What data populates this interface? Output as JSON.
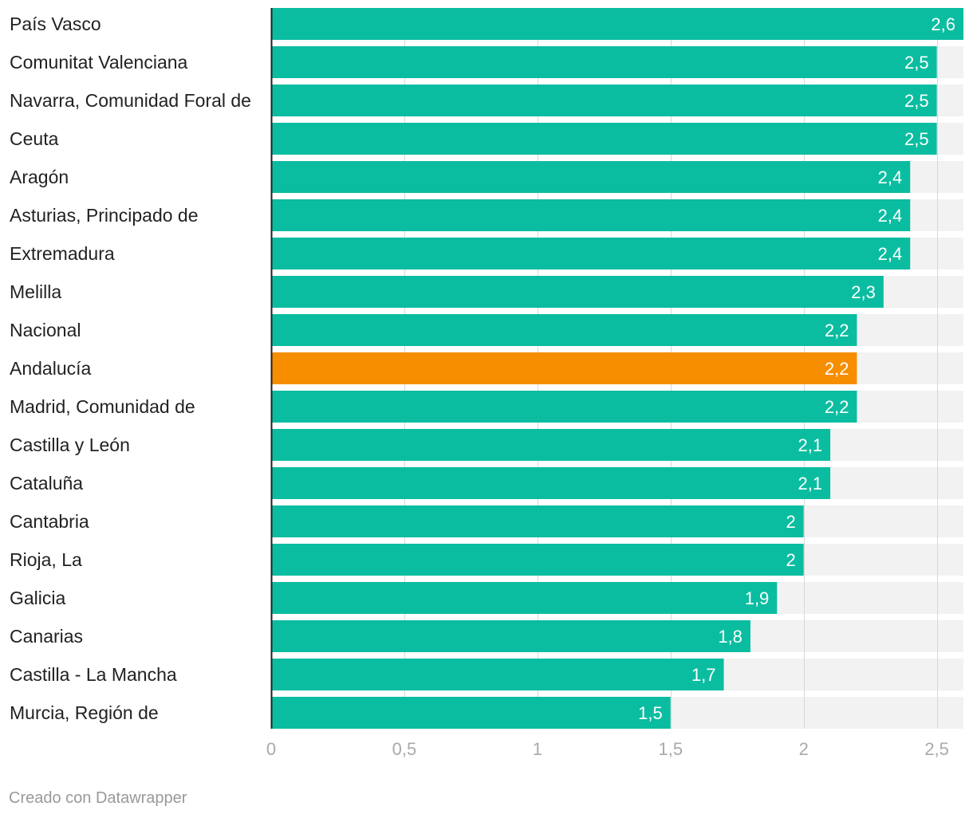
{
  "chart_data": {
    "type": "bar",
    "orientation": "horizontal",
    "categories": [
      "País Vasco",
      "Comunitat Valenciana",
      "Navarra, Comunidad Foral de",
      "Ceuta",
      "Aragón",
      "Asturias, Principado de",
      "Extremadura",
      "Melilla",
      "Nacional",
      "Andalucía",
      "Madrid, Comunidad de",
      "Castilla y León",
      "Cataluña",
      "Cantabria",
      "Rioja, La",
      "Galicia",
      "Canarias",
      "Castilla - La Mancha",
      "Murcia, Región de"
    ],
    "values": [
      2.6,
      2.5,
      2.5,
      2.5,
      2.4,
      2.4,
      2.4,
      2.3,
      2.2,
      2.2,
      2.2,
      2.1,
      2.1,
      2,
      2,
      1.9,
      1.8,
      1.7,
      1.5
    ],
    "value_labels": [
      "2,6",
      "2,5",
      "2,5",
      "2,5",
      "2,4",
      "2,4",
      "2,4",
      "2,3",
      "2,2",
      "2,2",
      "2,2",
      "2,1",
      "2,1",
      "2",
      "2",
      "1,9",
      "1,8",
      "1,7",
      "1,5"
    ],
    "highlight": "Andalucía",
    "xlim": [
      0,
      2.6
    ],
    "xticks": [
      0,
      0.5,
      1,
      1.5,
      2,
      2.5
    ],
    "xtick_labels": [
      "0",
      "0,5",
      "1",
      "1,5",
      "2",
      "2,5"
    ],
    "title": "",
    "xlabel": "",
    "ylabel": "",
    "grid": true
  },
  "colors": {
    "bar": "#0bbda0",
    "highlight": "#f68e00",
    "track": "#f2f2f2",
    "gridline": "#d8d8d8",
    "axis": "#222222"
  },
  "footer": {
    "credit": "Creado con Datawrapper"
  }
}
